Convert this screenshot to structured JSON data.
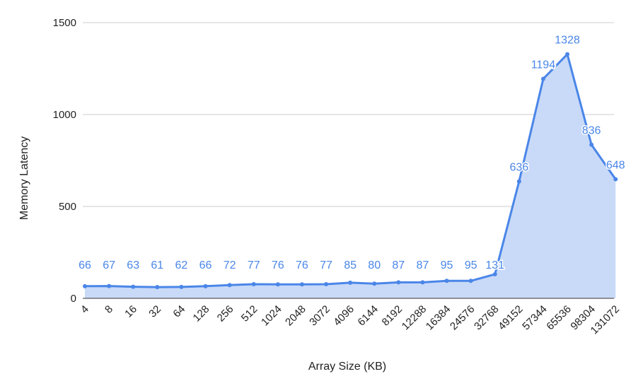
{
  "chart_data": {
    "type": "area",
    "xlabel": "Array Size (KB)",
    "ylabel": "Memory Latency",
    "ylim": [
      0,
      1500
    ],
    "yticks": [
      0,
      500,
      1000,
      1500
    ],
    "grid": true,
    "legend": "none",
    "categories": [
      "4",
      "8",
      "16",
      "32",
      "64",
      "128",
      "256",
      "512",
      "1024",
      "2048",
      "3072",
      "4096",
      "6144",
      "8192",
      "12288",
      "16384",
      "24576",
      "32768",
      "49152",
      "57344",
      "65536",
      "98304",
      "131072"
    ],
    "series": [
      {
        "values": [
          66,
          67,
          63,
          61,
          62,
          66,
          72,
          77,
          76,
          76,
          77,
          85,
          80,
          87,
          87,
          95,
          95,
          131,
          636,
          1194,
          1328,
          836,
          648
        ],
        "color": "#4a86e8",
        "fill": "#c9daf8"
      }
    ]
  }
}
